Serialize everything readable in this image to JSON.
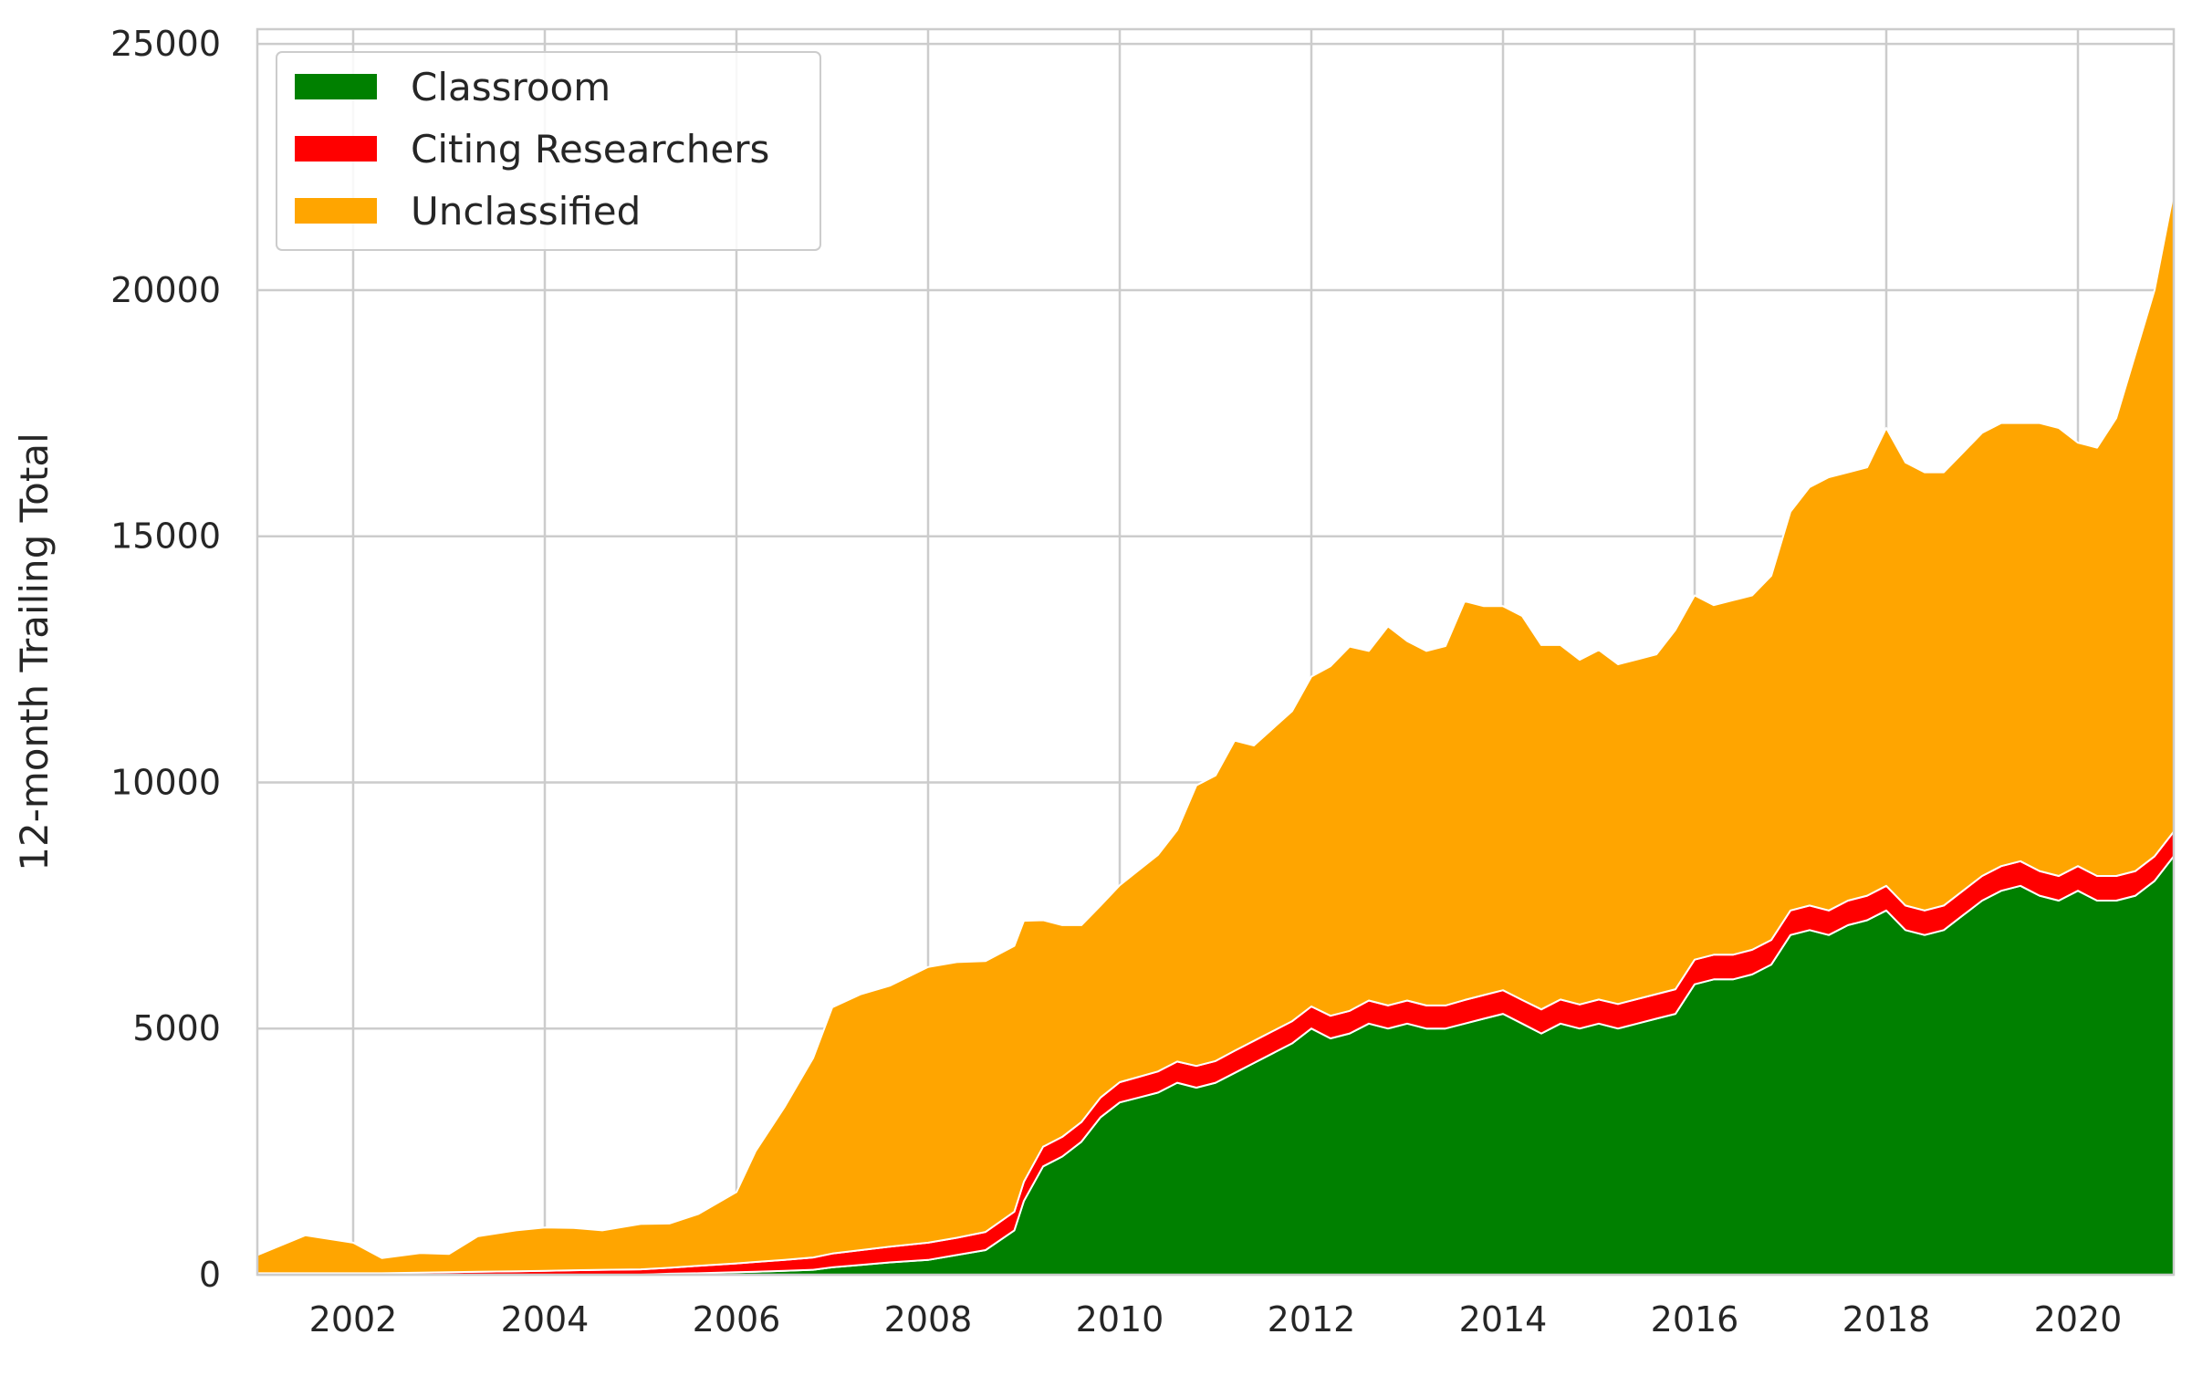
{
  "chart_data": {
    "type": "area",
    "stacked": true,
    "title": "",
    "xlabel": "",
    "ylabel": "12-month Trailing Total",
    "xlim": [
      2001.0,
      2021.0
    ],
    "ylim": [
      0,
      25300
    ],
    "xticks": [
      "2002",
      "2004",
      "2006",
      "2008",
      "2010",
      "2012",
      "2014",
      "2016",
      "2018",
      "2020"
    ],
    "yticks": [
      "0",
      "5000",
      "10000",
      "15000",
      "20000",
      "25000"
    ],
    "grid": true,
    "legend_position": "top-left",
    "x": [
      2001.0,
      2001.5,
      2002.0,
      2002.3,
      2002.7,
      2003.0,
      2003.3,
      2003.7,
      2004.0,
      2004.3,
      2004.6,
      2005.0,
      2005.3,
      2005.6,
      2006.0,
      2006.2,
      2006.5,
      2006.8,
      2007.0,
      2007.3,
      2007.6,
      2008.0,
      2008.3,
      2008.6,
      2008.9,
      2009.0,
      2009.2,
      2009.4,
      2009.6,
      2009.8,
      2010.0,
      2010.2,
      2010.4,
      2010.6,
      2010.8,
      2011.0,
      2011.2,
      2011.4,
      2011.6,
      2011.8,
      2012.0,
      2012.2,
      2012.4,
      2012.6,
      2012.8,
      2013.0,
      2013.2,
      2013.4,
      2013.6,
      2013.8,
      2014.0,
      2014.2,
      2014.4,
      2014.6,
      2014.8,
      2015.0,
      2015.2,
      2015.4,
      2015.6,
      2015.8,
      2016.0,
      2016.2,
      2016.4,
      2016.6,
      2016.8,
      2017.0,
      2017.2,
      2017.4,
      2017.6,
      2017.8,
      2018.0,
      2018.2,
      2018.4,
      2018.6,
      2018.8,
      2019.0,
      2019.2,
      2019.4,
      2019.6,
      2019.8,
      2020.0,
      2020.2,
      2020.4,
      2020.6,
      2020.8,
      2021.0
    ],
    "series": [
      {
        "name": "Classroom",
        "color": "#008000",
        "values": [
          0,
          0,
          0,
          0,
          0,
          0,
          0,
          0,
          0,
          0,
          0,
          0,
          20,
          30,
          50,
          60,
          80,
          100,
          150,
          200,
          250,
          300,
          400,
          500,
          900,
          1500,
          2200,
          2400,
          2700,
          3200,
          3500,
          3600,
          3700,
          3900,
          3800,
          3900,
          4100,
          4300,
          4500,
          4700,
          5000,
          4800,
          4900,
          5100,
          5000,
          5100,
          5000,
          5000,
          5100,
          5200,
          5300,
          5100,
          4900,
          5100,
          5000,
          5100,
          5000,
          5100,
          5200,
          5300,
          5900,
          6000,
          6000,
          6100,
          6300,
          6900,
          7000,
          6900,
          7100,
          7200,
          7400,
          7000,
          6900,
          7000,
          7300,
          7600,
          7800,
          7900,
          7700,
          7600,
          7800,
          7600,
          7600,
          7700,
          8000,
          8500
        ]
      },
      {
        "name": "Citing Researchers",
        "color": "#ff0000",
        "values": [
          30,
          30,
          30,
          30,
          40,
          50,
          60,
          70,
          80,
          90,
          100,
          110,
          120,
          150,
          180,
          200,
          220,
          250,
          280,
          300,
          320,
          350,
          350,
          370,
          380,
          390,
          400,
          400,
          400,
          400,
          410,
          420,
          430,
          430,
          440,
          440,
          450,
          450,
          450,
          450,
          450,
          460,
          460,
          470,
          470,
          470,
          470,
          470,
          480,
          480,
          480,
          480,
          490,
          490,
          490,
          490,
          500,
          500,
          500,
          500,
          500,
          500,
          500,
          500,
          500,
          500,
          500,
          500,
          500,
          500,
          500,
          500,
          500,
          500,
          500,
          500,
          500,
          500,
          500,
          500,
          500,
          500,
          500,
          500,
          500,
          500
        ]
      },
      {
        "name": "Unclassified",
        "color": "#ffa500",
        "values": [
          370,
          770,
          620,
          310,
          400,
          370,
          720,
          830,
          880,
          860,
          800,
          920,
          900,
          1050,
          1450,
          2250,
          3100,
          4050,
          5000,
          5200,
          5300,
          5600,
          5600,
          5500,
          5400,
          5300,
          4600,
          4300,
          4000,
          3900,
          4000,
          4200,
          4400,
          4700,
          5700,
          5800,
          6300,
          6000,
          6150,
          6300,
          6700,
          7100,
          7400,
          7100,
          7700,
          7300,
          7200,
          7300,
          8100,
          7900,
          7800,
          7800,
          7400,
          7200,
          7000,
          7100,
          6900,
          6900,
          6900,
          7300,
          7400,
          7100,
          7200,
          7200,
          7400,
          8100,
          8500,
          8800,
          8700,
          8700,
          9300,
          9000,
          8900,
          8800,
          8900,
          9000,
          9000,
          8900,
          9100,
          9100,
          8600,
          8700,
          9300,
          10500,
          11500,
          13000
        ]
      }
    ]
  }
}
